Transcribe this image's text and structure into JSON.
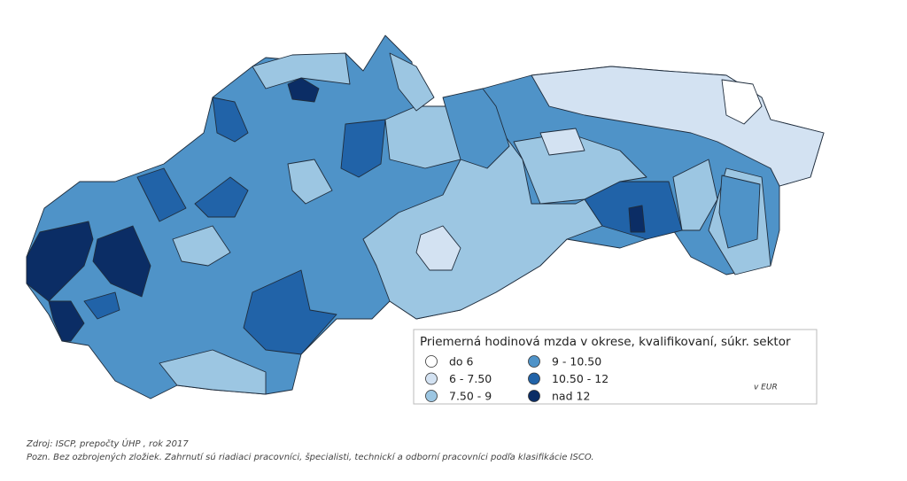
{
  "legend": {
    "title": "Priemerná hodinová mzda v okrese, kvalifikovaní, súkr. sektor",
    "items": [
      {
        "label": "do 6",
        "color": "#ffffff"
      },
      {
        "label": "6 - 7.50",
        "color": "#d3e2f2"
      },
      {
        "label": "7.50 - 9",
        "color": "#9cc6e2"
      },
      {
        "label": "9 - 10.50",
        "color": "#4f93c8"
      },
      {
        "label": "10.50 - 12",
        "color": "#2163a8"
      },
      {
        "label": "nad 12",
        "color": "#0b2d65"
      }
    ],
    "unit": "v EUR"
  },
  "source": "Zdroj: ISCP, prepočty ÚHP , rok 2017",
  "note": "Pozn. Bez ozbrojených zložiek. Zahrnutí sú riadiaci pracovníci, špecialisti, technickí a odborní pracovníci podľa klasifikácie ISCO."
}
